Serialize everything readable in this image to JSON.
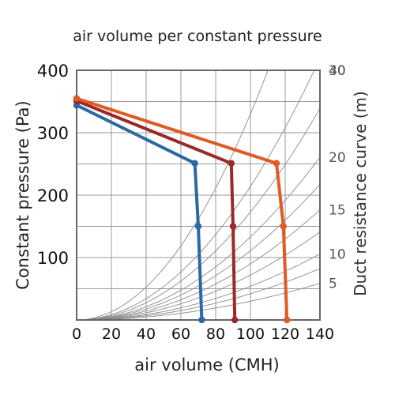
{
  "chart_data": {
    "type": "line",
    "title": "air volume per constant pressure",
    "xlabel": "air volume (CMH)",
    "ylabel": "Constant pressure (Pa)",
    "y2label": "Duct resistance curve (m)",
    "xlim": [
      0,
      140
    ],
    "ylim": [
      0,
      400
    ],
    "x_ticks": [
      "0",
      "20",
      "40",
      "60",
      "80",
      "100",
      "120",
      "140"
    ],
    "y_ticks": [
      "100",
      "200",
      "300",
      "400"
    ],
    "grid": true,
    "colors": {
      "blue": "#2a6aa3",
      "red": "#9a2a2a",
      "orange": "#e05a24",
      "curve": "#8a8a8a",
      "grid": "#9a9a9a",
      "axis": "#666666"
    },
    "series": [
      {
        "color": "#2a6aa3",
        "points": [
          [
            0,
            344
          ],
          [
            68,
            251
          ],
          [
            70,
            150
          ],
          [
            72,
            0
          ]
        ]
      },
      {
        "color": "#9a2a2a",
        "points": [
          [
            0,
            351
          ],
          [
            89,
            251
          ],
          [
            90,
            150
          ],
          [
            91,
            0
          ]
        ]
      },
      {
        "color": "#e05a24",
        "points": [
          [
            0,
            355
          ],
          [
            115,
            251
          ],
          [
            119,
            150
          ],
          [
            121,
            0
          ]
        ]
      }
    ],
    "duct_resistance_curves": [
      {
        "label": "40",
        "k": 0.033
      },
      {
        "label": "30",
        "k": 0.0214
      },
      {
        "label": "",
        "k": 0.0173
      },
      {
        "label": "20",
        "k": 0.0133
      },
      {
        "label": "",
        "k": 0.0111
      },
      {
        "label": "15",
        "k": 0.009
      },
      {
        "label": "",
        "k": 0.0072
      },
      {
        "label": "10",
        "k": 0.0054
      },
      {
        "label": "",
        "k": 0.0042
      },
      {
        "label": "5",
        "k": 0.003
      }
    ]
  }
}
